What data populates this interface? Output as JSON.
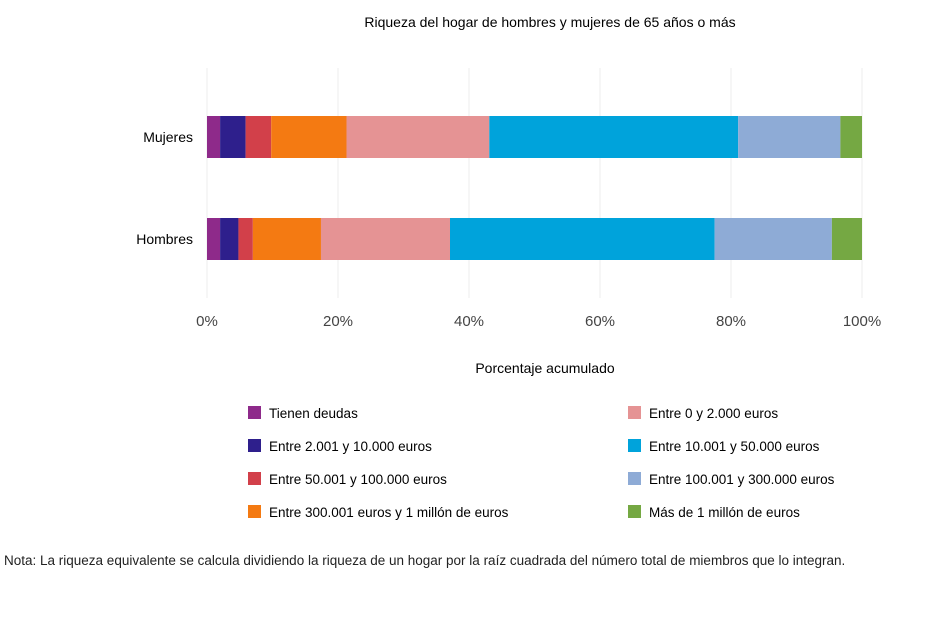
{
  "chart_data": {
    "type": "bar",
    "orientation": "horizontal",
    "stacked": true,
    "title": "Riqueza del hogar de hombres y mujeres de 65 años o más",
    "xlabel": "Porcentaje acumulado",
    "ylabel": "",
    "xlim": [
      0,
      100
    ],
    "x_ticks": [
      "0%",
      "20%",
      "40%",
      "60%",
      "80%",
      "100%"
    ],
    "grid": "vertical",
    "legend_placement": "bottom",
    "categories": [
      "Mujeres",
      "Hombres"
    ],
    "series": [
      {
        "name": "Tienen deudas",
        "color": "#8e2a8a",
        "values": [
          2.0,
          2.0
        ]
      },
      {
        "name": "Entre 2.001 y 10.000 euros",
        "color": "#2e1f8c",
        "values": [
          3.9,
          2.8
        ]
      },
      {
        "name": "Entre 50.001 y 100.000 euros",
        "color": "#d2404a",
        "values": [
          3.9,
          2.2
        ]
      },
      {
        "name": "Entre 300.001 euros y 1 millón de euros",
        "color": "#f47a12",
        "values": [
          11.5,
          10.4
        ]
      },
      {
        "name": "Entre 0 y 2.000 euros",
        "color": "#e59394",
        "values": [
          21.8,
          19.7
        ]
      },
      {
        "name": "Entre 10.001 y 50.000 euros",
        "color": "#00a3db",
        "values": [
          38.0,
          40.4
        ]
      },
      {
        "name": "Entre 100.001 y 300.000 euros",
        "color": "#8eabd6",
        "values": [
          15.6,
          17.9
        ]
      },
      {
        "name": "Más de 1 millón de euros",
        "color": "#75a843",
        "values": [
          3.3,
          4.6
        ]
      }
    ],
    "legend_order": [
      0,
      4,
      1,
      5,
      2,
      6,
      3,
      7
    ]
  },
  "note": "Nota: La riqueza equivalente se calcula dividiendo la riqueza de un hogar por la raíz cuadrada del número total de miembros que lo integran."
}
